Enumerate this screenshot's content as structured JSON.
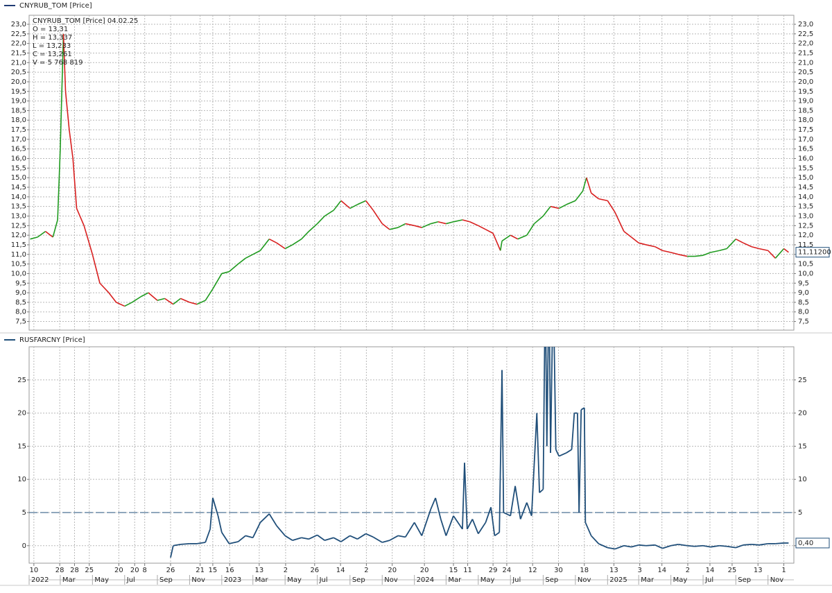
{
  "time_axis": {
    "xlim": [
      "2022-01-01",
      "2025-12-20"
    ],
    "xticks": [
      {
        "value": "2022-01-10",
        "label": "10"
      },
      {
        "value": "2022-02-28",
        "label": "28"
      },
      {
        "value": "2022-03-28",
        "label": "28"
      },
      {
        "value": "2022-04-25",
        "label": "25"
      },
      {
        "value": "2022-06-20",
        "label": "20"
      },
      {
        "value": "2022-07-20",
        "label": "20"
      },
      {
        "value": "2022-08-08",
        "label": "8"
      },
      {
        "value": "2022-09-26",
        "label": "26"
      },
      {
        "value": "2022-11-21",
        "label": "21"
      },
      {
        "value": "2022-12-15",
        "label": "15"
      },
      {
        "value": "2023-01-16",
        "label": "16"
      },
      {
        "value": "2023-03-13",
        "label": "13"
      },
      {
        "value": "2023-05-02",
        "label": "2"
      },
      {
        "value": "2023-06-26",
        "label": "26"
      },
      {
        "value": "2023-08-14",
        "label": "14"
      },
      {
        "value": "2023-10-02",
        "label": "2"
      },
      {
        "value": "2023-11-20",
        "label": "20"
      },
      {
        "value": "2024-01-20",
        "label": "20"
      },
      {
        "value": "2024-03-15",
        "label": "15"
      },
      {
        "value": "2024-04-11",
        "label": "11"
      },
      {
        "value": "2024-05-29",
        "label": "29"
      },
      {
        "value": "2024-06-24",
        "label": "24"
      },
      {
        "value": "2024-08-12",
        "label": "12"
      },
      {
        "value": "2024-09-30",
        "label": "30"
      },
      {
        "value": "2024-11-18",
        "label": "18"
      },
      {
        "value": "2025-01-13",
        "label": "13"
      },
      {
        "value": "2025-03-03",
        "label": "3"
      },
      {
        "value": "2025-04-14",
        "label": "14"
      },
      {
        "value": "2025-06-02",
        "label": "2"
      },
      {
        "value": "2025-07-14",
        "label": "14"
      },
      {
        "value": "2025-08-25",
        "label": "25"
      },
      {
        "value": "2025-10-13",
        "label": "13"
      },
      {
        "value": "2025-12-01",
        "label": "1"
      }
    ],
    "month_ticks": [
      {
        "value": "2022-01-01",
        "label": "2022"
      },
      {
        "value": "2022-03-01",
        "label": "Mar"
      },
      {
        "value": "2022-05-01",
        "label": "May"
      },
      {
        "value": "2022-07-01",
        "label": "Jul"
      },
      {
        "value": "2022-09-01",
        "label": "Sep"
      },
      {
        "value": "2022-11-01",
        "label": "Nov"
      },
      {
        "value": "2023-01-01",
        "label": "2023"
      },
      {
        "value": "2023-03-01",
        "label": "Mar"
      },
      {
        "value": "2023-05-01",
        "label": "May"
      },
      {
        "value": "2023-07-01",
        "label": "Jul"
      },
      {
        "value": "2023-09-01",
        "label": "Sep"
      },
      {
        "value": "2023-11-01",
        "label": "Nov"
      },
      {
        "value": "2024-01-01",
        "label": "2024"
      },
      {
        "value": "2024-03-01",
        "label": "Mar"
      },
      {
        "value": "2024-05-01",
        "label": "May"
      },
      {
        "value": "2024-07-01",
        "label": "Jul"
      },
      {
        "value": "2024-09-01",
        "label": "Sep"
      },
      {
        "value": "2024-11-01",
        "label": "Nov"
      },
      {
        "value": "2025-01-01",
        "label": "2025"
      },
      {
        "value": "2025-03-01",
        "label": "Mar"
      },
      {
        "value": "2025-05-01",
        "label": "May"
      },
      {
        "value": "2025-07-01",
        "label": "Jul"
      },
      {
        "value": "2025-09-01",
        "label": "Sep"
      },
      {
        "value": "2025-11-01",
        "label": "Nov"
      }
    ]
  },
  "chart_data": [
    {
      "type": "line",
      "annotations": [
        "CNYRUB_TOM [Price] 04.02.25",
        "O = 13,31",
        "H = 13,337",
        "L = 13,233",
        "C = 13,261",
        "V = 5 768 819"
      ],
      "x": [
        "2022-01-03",
        "2022-01-17",
        "2022-02-01",
        "2022-02-15",
        "2022-02-24",
        "2022-03-01",
        "2022-03-07",
        "2022-03-11",
        "2022-03-18",
        "2022-03-25",
        "2022-04-01",
        "2022-04-15",
        "2022-05-01",
        "2022-05-15",
        "2022-06-01",
        "2022-06-15",
        "2022-07-01",
        "2022-07-15",
        "2022-08-01",
        "2022-08-15",
        "2022-09-01",
        "2022-09-15",
        "2022-10-01",
        "2022-10-15",
        "2022-11-01",
        "2022-11-15",
        "2022-12-01",
        "2022-12-15",
        "2023-01-01",
        "2023-01-15",
        "2023-02-01",
        "2023-02-15",
        "2023-03-01",
        "2023-03-15",
        "2023-04-01",
        "2023-04-15",
        "2023-05-01",
        "2023-05-15",
        "2023-06-01",
        "2023-06-15",
        "2023-07-01",
        "2023-07-15",
        "2023-08-01",
        "2023-08-15",
        "2023-09-01",
        "2023-09-15",
        "2023-10-01",
        "2023-10-15",
        "2023-11-01",
        "2023-11-15",
        "2023-12-01",
        "2023-12-15",
        "2024-01-01",
        "2024-01-15",
        "2024-02-01",
        "2024-02-15",
        "2024-03-01",
        "2024-03-15",
        "2024-04-01",
        "2024-04-15",
        "2024-05-01",
        "2024-05-15",
        "2024-05-29",
        "2024-06-12",
        "2024-06-15",
        "2024-07-01",
        "2024-07-15",
        "2024-08-01",
        "2024-08-15",
        "2024-09-01",
        "2024-09-15",
        "2024-10-01",
        "2024-10-15",
        "2024-11-01",
        "2024-11-15",
        "2024-11-22",
        "2024-12-01",
        "2024-12-15",
        "2025-01-01",
        "2025-01-15",
        "2025-02-01",
        "2025-02-15",
        "2025-03-01",
        "2025-03-15",
        "2025-04-01",
        "2025-04-15",
        "2025-05-01",
        "2025-05-15",
        "2025-06-01",
        "2025-06-15",
        "2025-07-01",
        "2025-07-15",
        "2025-08-01",
        "2025-08-15",
        "2025-09-01",
        "2025-09-15",
        "2025-10-01",
        "2025-10-15",
        "2025-11-01",
        "2025-11-15",
        "2025-12-01",
        "2025-12-10"
      ],
      "series": [
        {
          "name": "CNYRUB_TOM [Price]",
          "color": "#1f3b73",
          "up_color": "#1e9a1e",
          "down_color": "#d81e1e",
          "values": [
            11.8,
            11.9,
            12.2,
            11.9,
            12.8,
            16.5,
            22.5,
            19.5,
            17.5,
            16.0,
            13.4,
            12.5,
            11.0,
            9.5,
            9.0,
            8.5,
            8.3,
            8.5,
            8.8,
            9.0,
            8.6,
            8.7,
            8.4,
            8.7,
            8.5,
            8.4,
            8.6,
            9.2,
            10.0,
            10.1,
            10.5,
            10.8,
            11.0,
            11.2,
            11.8,
            11.6,
            11.3,
            11.5,
            11.8,
            12.2,
            12.6,
            13.0,
            13.3,
            13.8,
            13.4,
            13.6,
            13.8,
            13.3,
            12.6,
            12.3,
            12.4,
            12.6,
            12.5,
            12.4,
            12.6,
            12.7,
            12.6,
            12.7,
            12.8,
            12.7,
            12.5,
            12.3,
            12.1,
            11.2,
            11.7,
            12.0,
            11.8,
            12.0,
            12.6,
            13.0,
            13.5,
            13.4,
            13.6,
            13.8,
            14.3,
            15.0,
            14.2,
            13.9,
            13.8,
            13.2,
            12.2,
            11.9,
            11.6,
            11.5,
            11.4,
            11.2,
            11.1,
            11.0,
            10.9,
            10.9,
            10.95,
            11.1,
            11.2,
            11.3,
            11.8,
            11.6,
            11.4,
            11.3,
            11.2,
            10.8,
            11.3,
            11.11
          ]
        }
      ],
      "ylim": [
        7.05,
        23.47
      ],
      "yticks": [
        {
          "value": 7.5,
          "label": "7,5"
        },
        {
          "value": 8.0,
          "label": "8,0"
        },
        {
          "value": 8.5,
          "label": "8,5"
        },
        {
          "value": 9.0,
          "label": "9,0"
        },
        {
          "value": 9.5,
          "label": "9,5"
        },
        {
          "value": 10.0,
          "label": "10,0"
        },
        {
          "value": 10.5,
          "label": "10,5"
        },
        {
          "value": 11.0,
          "label": "11,0"
        },
        {
          "value": 11.5,
          "label": "11,5"
        },
        {
          "value": 12.0,
          "label": "12,0"
        },
        {
          "value": 12.5,
          "label": "12,5"
        },
        {
          "value": 13.0,
          "label": "13,0"
        },
        {
          "value": 13.5,
          "label": "13,5"
        },
        {
          "value": 14.0,
          "label": "14,0"
        },
        {
          "value": 14.5,
          "label": "14,5"
        },
        {
          "value": 15.0,
          "label": "15,0"
        },
        {
          "value": 15.5,
          "label": "15,5"
        },
        {
          "value": 16.0,
          "label": "16,0"
        },
        {
          "value": 16.5,
          "label": "16,5"
        },
        {
          "value": 17.0,
          "label": "17,0"
        },
        {
          "value": 17.5,
          "label": "17,5"
        },
        {
          "value": 18.0,
          "label": "18,0"
        },
        {
          "value": 18.5,
          "label": "18,5"
        },
        {
          "value": 19.0,
          "label": "19,0"
        },
        {
          "value": 19.5,
          "label": "19,5"
        },
        {
          "value": 20.0,
          "label": "20,0"
        },
        {
          "value": 20.5,
          "label": "20,5"
        },
        {
          "value": 21.0,
          "label": "21,0"
        },
        {
          "value": 21.5,
          "label": "21,5"
        },
        {
          "value": 22.0,
          "label": "22,0"
        },
        {
          "value": 22.5,
          "label": "22,5"
        },
        {
          "value": 23.0,
          "label": "23,0"
        }
      ],
      "grid": true,
      "last_label": {
        "value": 11.112,
        "label": "11,11200"
      }
    },
    {
      "type": "line",
      "x": [
        "2022-09-26",
        "2022-10-01",
        "2022-10-15",
        "2022-11-01",
        "2022-11-15",
        "2022-12-01",
        "2022-12-10",
        "2022-12-15",
        "2022-12-25",
        "2023-01-01",
        "2023-01-15",
        "2023-02-01",
        "2023-02-15",
        "2023-03-01",
        "2023-03-15",
        "2023-04-01",
        "2023-04-15",
        "2023-05-01",
        "2023-05-15",
        "2023-06-01",
        "2023-06-15",
        "2023-07-01",
        "2023-07-15",
        "2023-08-01",
        "2023-08-15",
        "2023-09-01",
        "2023-09-15",
        "2023-10-01",
        "2023-10-15",
        "2023-11-01",
        "2023-11-15",
        "2023-12-01",
        "2023-12-15",
        "2024-01-01",
        "2024-01-15",
        "2024-02-01",
        "2024-02-10",
        "2024-02-20",
        "2024-03-01",
        "2024-03-15",
        "2024-04-01",
        "2024-04-05",
        "2024-04-10",
        "2024-04-20",
        "2024-05-01",
        "2024-05-15",
        "2024-05-25",
        "2024-06-01",
        "2024-06-10",
        "2024-06-15",
        "2024-06-18",
        "2024-07-01",
        "2024-07-10",
        "2024-07-20",
        "2024-08-01",
        "2024-08-10",
        "2024-08-20",
        "2024-08-25",
        "2024-09-01",
        "2024-09-05",
        "2024-09-08",
        "2024-09-12",
        "2024-09-15",
        "2024-09-20",
        "2024-09-25",
        "2024-10-01",
        "2024-10-15",
        "2024-10-25",
        "2024-10-30",
        "2024-11-05",
        "2024-11-08",
        "2024-11-12",
        "2024-11-18",
        "2024-11-20",
        "2024-12-01",
        "2024-12-15",
        "2025-01-01",
        "2025-01-15",
        "2025-02-01",
        "2025-02-15",
        "2025-03-01",
        "2025-03-15",
        "2025-04-01",
        "2025-04-15",
        "2025-05-01",
        "2025-05-15",
        "2025-06-01",
        "2025-06-15",
        "2025-07-01",
        "2025-07-15",
        "2025-08-01",
        "2025-08-15",
        "2025-09-01",
        "2025-09-15",
        "2025-10-01",
        "2025-10-15",
        "2025-11-01",
        "2025-11-15",
        "2025-12-01",
        "2025-12-10"
      ],
      "series": [
        {
          "name": "RUSFARCNY [Price]",
          "color": "#1f4e79",
          "values": [
            -1.8,
            0.0,
            0.2,
            0.3,
            0.3,
            0.5,
            2.5,
            7.2,
            4.5,
            2.0,
            0.3,
            0.6,
            1.5,
            1.2,
            3.5,
            4.8,
            3.0,
            1.5,
            0.8,
            1.2,
            1.0,
            1.6,
            0.8,
            1.2,
            0.6,
            1.5,
            1.0,
            1.8,
            1.3,
            0.5,
            0.8,
            1.5,
            1.3,
            3.5,
            1.5,
            5.5,
            7.2,
            4.0,
            1.5,
            4.5,
            2.5,
            12.5,
            2.5,
            4.0,
            1.8,
            3.5,
            5.8,
            1.5,
            2.0,
            26.5,
            5.0,
            4.5,
            9.0,
            4.0,
            6.5,
            4.5,
            20.0,
            8.0,
            8.5,
            40,
            15.0,
            40,
            14.0,
            40,
            14.5,
            13.5,
            14.0,
            14.5,
            20.0,
            20.0,
            5.0,
            20.5,
            20.8,
            3.5,
            1.5,
            0.3,
            -0.3,
            -0.5,
            0.0,
            -0.2,
            0.1,
            0.0,
            0.1,
            -0.4,
            0.0,
            0.2,
            0.0,
            -0.1,
            0.0,
            -0.2,
            0.0,
            -0.1,
            -0.3,
            0.1,
            0.2,
            0.1,
            0.3,
            0.3,
            0.4,
            0.4
          ]
        }
      ],
      "ylim": [
        -2.64,
        30.0
      ],
      "yticks": [
        0,
        5,
        10,
        15,
        20,
        25
      ],
      "grid": true,
      "reference_line": {
        "value": 5,
        "color": "#1f4e79"
      },
      "last_label": {
        "value": 0.4,
        "label": "0,40"
      }
    }
  ]
}
